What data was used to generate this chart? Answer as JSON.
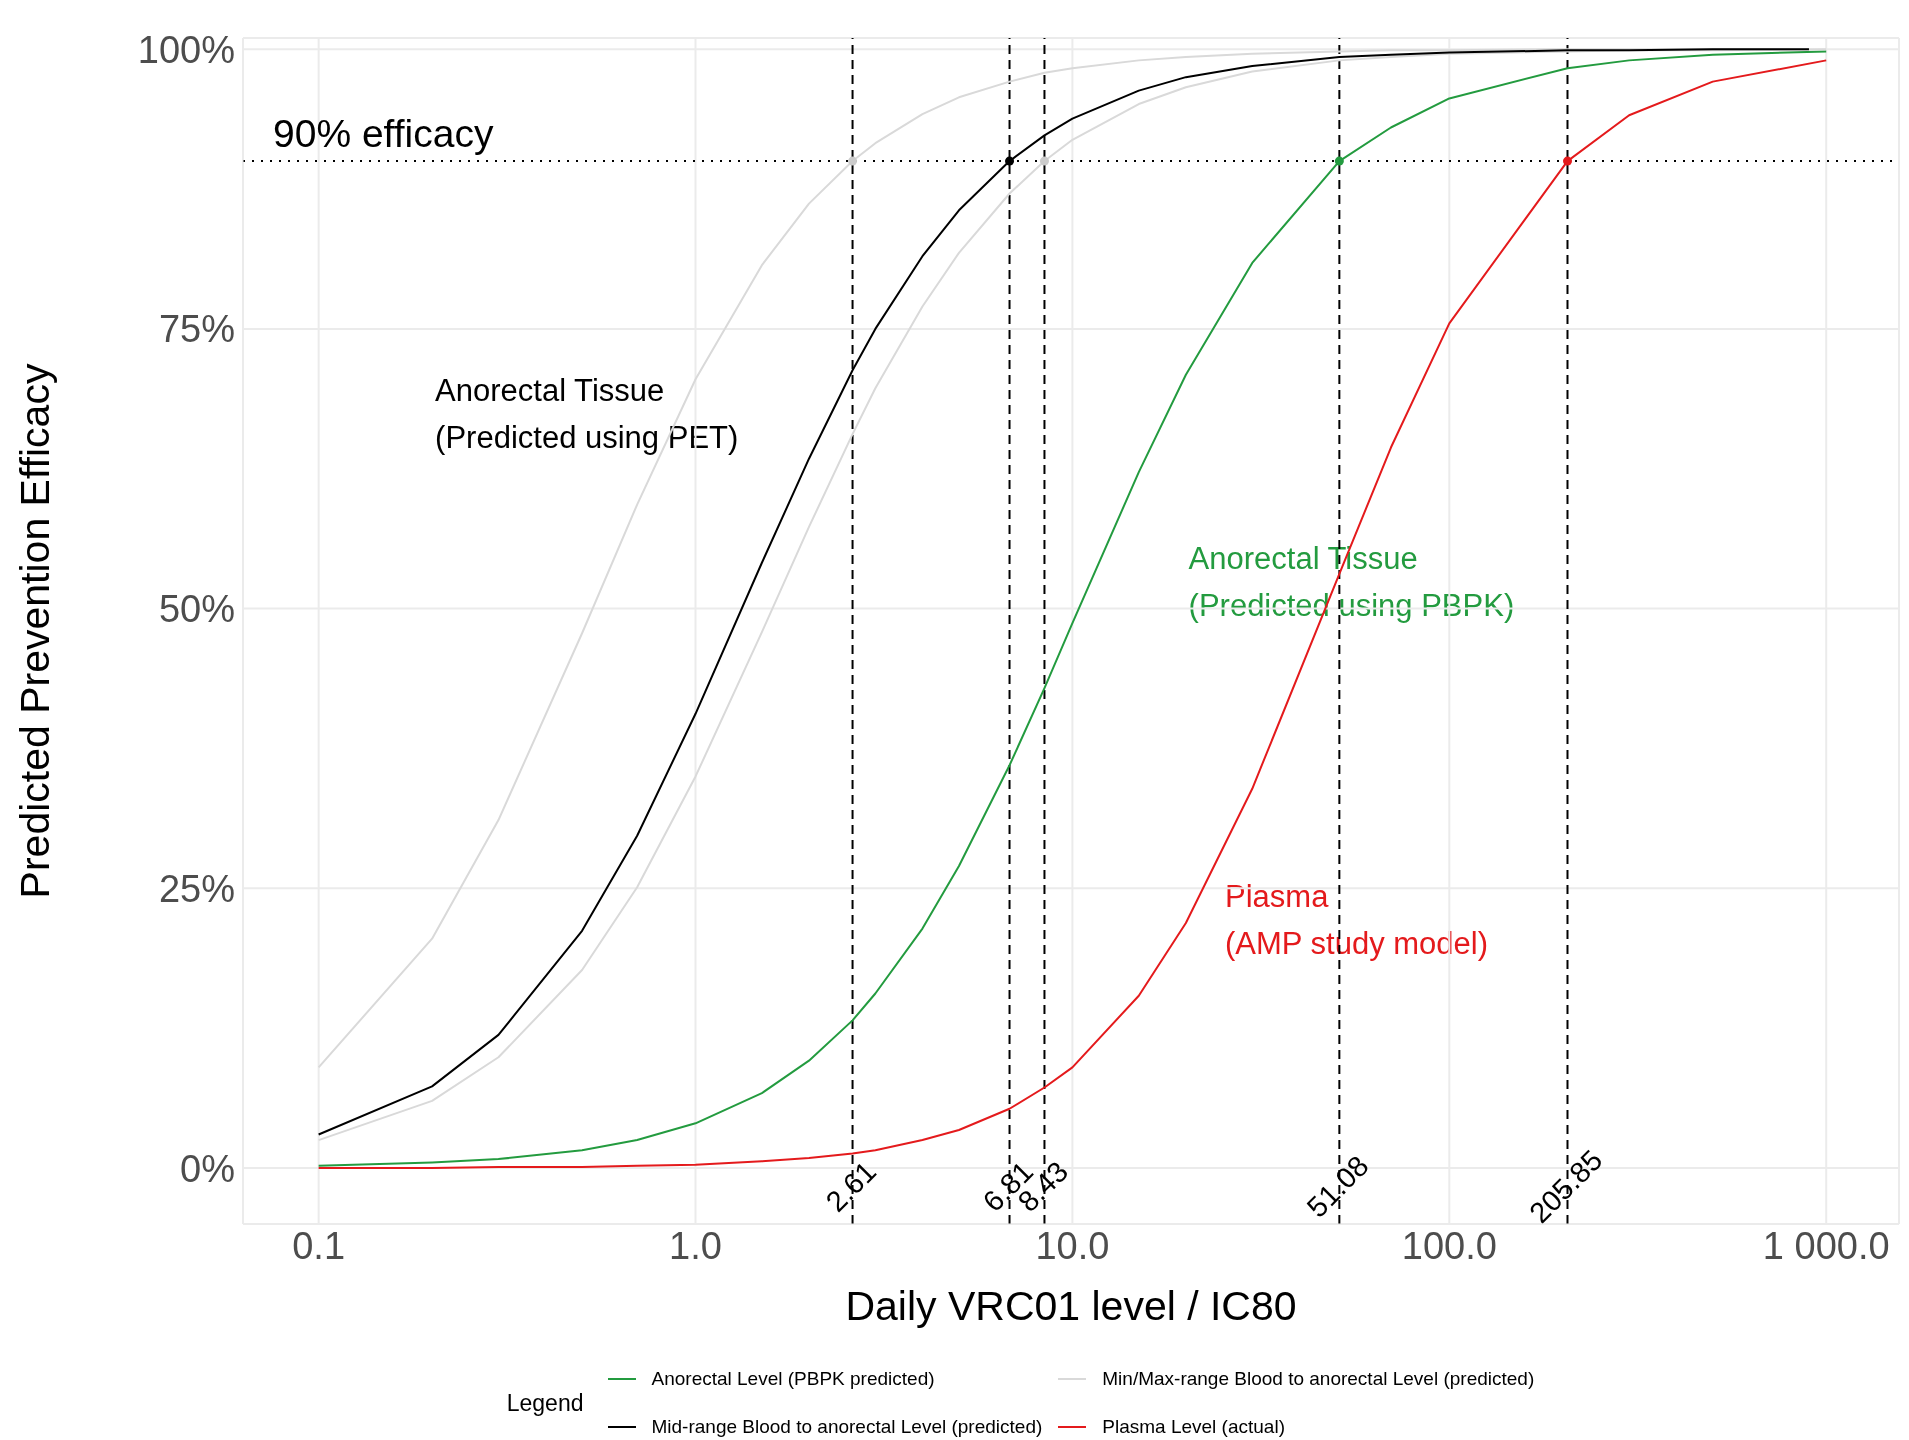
{
  "chart_data": {
    "type": "line",
    "xlabel": "Daily VRC01 level / IC80",
    "ylabel": "Predicted Prevention Efficacy",
    "legend_title": "Legend",
    "legend": "bottom",
    "grid": true,
    "log": "x",
    "line_style": "solid",
    "xlim": [
      0.063,
      1560
    ],
    "ylim": [
      -5,
      101
    ],
    "xticks": [
      {
        "value": 0.1,
        "label": "0.1"
      },
      {
        "value": 1,
        "label": "1.0"
      },
      {
        "value": 10,
        "label": "10.0"
      },
      {
        "value": 100,
        "label": "100.0"
      },
      {
        "value": 1000,
        "label": "1 000.0"
      }
    ],
    "yticks": [
      {
        "value": 0,
        "label": "0%"
      },
      {
        "value": 25,
        "label": "25%"
      },
      {
        "value": 50,
        "label": "50%"
      },
      {
        "value": 75,
        "label": "75%"
      },
      {
        "value": 100,
        "label": "100%"
      }
    ],
    "series": [
      {
        "name": "Anorectal Level (PBPK predicted)",
        "color": "#239b3f",
        "x": [
          0.1,
          0.2,
          0.3,
          0.5,
          0.7,
          1,
          1.5,
          2,
          2.61,
          3,
          4,
          5,
          6.81,
          8.43,
          10,
          15,
          20,
          30,
          51.08,
          70,
          100,
          205.85,
          300,
          500,
          1000
        ],
        "values": [
          0.2,
          0.5,
          0.8,
          1.6,
          2.5,
          4.0,
          6.7,
          9.6,
          13.2,
          15.6,
          21.4,
          27.0,
          36.0,
          42.9,
          48.7,
          62.2,
          70.9,
          80.9,
          90,
          93.0,
          95.6,
          98.3,
          99.0,
          99.5,
          99.8
        ]
      },
      {
        "name": "Min/Max-range Blood to anorectal Level (predicted)",
        "color": "#d9d9d9",
        "x": [
          0.1,
          0.2,
          0.3,
          0.5,
          0.7,
          1,
          1.5,
          2,
          2.61,
          3,
          4,
          5,
          6.81,
          8.43,
          10,
          15,
          20,
          30,
          51.08,
          70,
          100,
          205.85,
          300,
          500,
          800
        ],
        "values": [
          9.0,
          20.5,
          31.1,
          47.8,
          59.3,
          70.5,
          80.7,
          86.2,
          90,
          91.6,
          94.2,
          95.7,
          97.1,
          97.9,
          98.3,
          99.0,
          99.3,
          99.6,
          99.8,
          99.9,
          99.9,
          100,
          100,
          100,
          100
        ]
      },
      {
        "color": "#d9d9d9",
        "x": [
          0.1,
          0.2,
          0.3,
          0.5,
          0.7,
          1,
          1.5,
          2,
          2.61,
          3,
          4,
          5,
          6.81,
          8.43,
          10,
          15,
          20,
          30,
          51.08,
          70,
          100,
          205.85,
          300,
          500,
          1000
        ],
        "values": [
          2.5,
          6.0,
          9.9,
          17.7,
          25.1,
          35.0,
          47.9,
          57.3,
          65.6,
          69.7,
          77.0,
          81.8,
          87.1,
          90,
          91.9,
          95.1,
          96.6,
          98.0,
          99.0,
          99.3,
          99.6,
          99.8,
          99.9,
          99.9,
          100
        ]
      },
      {
        "name": "Mid-range Blood to anorectal Level (predicted)",
        "color": "#000000",
        "x": [
          0.1,
          0.2,
          0.3,
          0.5,
          0.7,
          1,
          1.5,
          2,
          2.61,
          3,
          4,
          5,
          6.81,
          8.43,
          10,
          15,
          20,
          30,
          51.08,
          70,
          100,
          205.85,
          300,
          500,
          900
        ],
        "values": [
          3.0,
          7.3,
          11.9,
          21.2,
          29.7,
          40.6,
          54.1,
          63.4,
          71.3,
          75.0,
          81.5,
          85.6,
          90,
          92.3,
          93.8,
          96.3,
          97.5,
          98.5,
          99.3,
          99.5,
          99.7,
          99.9,
          99.9,
          100,
          100
        ]
      },
      {
        "name": "Plasma Level (actual)",
        "color": "#e41a1c",
        "x": [
          0.1,
          0.2,
          0.3,
          0.5,
          0.7,
          1,
          1.5,
          2,
          2.61,
          3,
          4,
          5,
          6.81,
          8.43,
          10,
          15,
          20,
          30,
          51.08,
          70,
          100,
          205.85,
          300,
          500,
          1000
        ],
        "values": [
          0,
          0,
          0.1,
          0.1,
          0.2,
          0.3,
          0.6,
          0.9,
          1.3,
          1.6,
          2.5,
          3.4,
          5.3,
          7.2,
          9.0,
          15.4,
          21.9,
          33.9,
          53.1,
          64.4,
          75.5,
          90,
          94.1,
          97.1,
          99.0
        ]
      },
      {
        "type": "scatter",
        "marker": "circle",
        "x": [
          2.61,
          6.81,
          8.43,
          51.08,
          205.85
        ],
        "values": [
          90,
          90,
          90,
          90,
          90
        ],
        "colors": [
          "#cccccc",
          "#000000",
          "#cccccc",
          "#239b3f",
          "#e41a1c"
        ]
      }
    ],
    "ref_lines": [
      {
        "axis": "y",
        "value": 90,
        "label": "90% efficacy",
        "line_style": "dotted",
        "color": "#000000"
      },
      {
        "axis": "x",
        "value": 2.61,
        "label": "2.61",
        "line_style": "dashed",
        "color": "#000000"
      },
      {
        "axis": "x",
        "value": 6.81,
        "label": "6.81",
        "line_style": "dashed",
        "color": "#000000"
      },
      {
        "axis": "x",
        "value": 8.43,
        "label": "8.43",
        "line_style": "dashed",
        "color": "#000000"
      },
      {
        "axis": "x",
        "value": 51.08,
        "label": "51.08",
        "line_style": "dashed",
        "color": "#000000"
      },
      {
        "axis": "x",
        "value": 205.85,
        "label": "205.85",
        "line_style": "dashed",
        "color": "#000000"
      }
    ],
    "annotations": [
      "Anorectal Tissue\n(Predicted using PET)",
      "Anorectal Tissue\n(Predicted using PBPK)",
      "Plasma\n(AMP study model)"
    ]
  }
}
